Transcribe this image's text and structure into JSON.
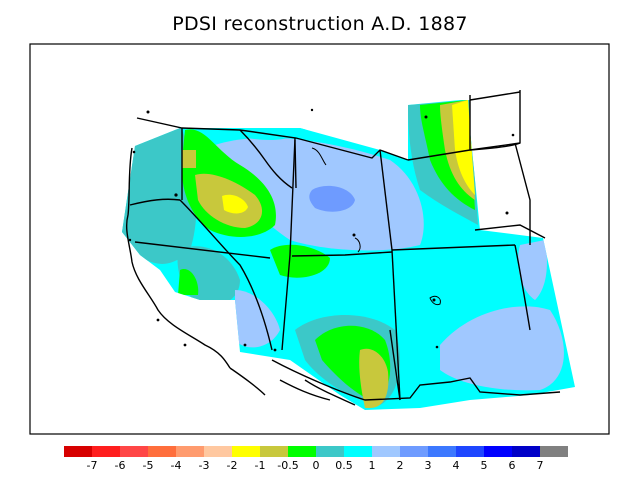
{
  "title": "PDSI reconstruction A.D. 1887",
  "colorbar": {
    "colors": [
      "#d70000",
      "#ff1e1e",
      "#ff4646",
      "#ff6e3c",
      "#ff9b6e",
      "#ffc8a0",
      "#ffff00",
      "#c8c83c",
      "#00ff00",
      "#3cc8c8",
      "#00ffff",
      "#a0c8ff",
      "#6e9bff",
      "#3c78ff",
      "#1e46ff",
      "#0000ff",
      "#0000c8",
      "#808080"
    ],
    "labels": [
      "-7",
      "-6",
      "-5",
      "-4",
      "-3",
      "-2",
      "-1",
      "-0.5",
      "0",
      "0.5",
      "1",
      "2",
      "3",
      "4",
      "5",
      "6",
      "7"
    ]
  },
  "icons": {
    "map": "western-us-state-boundaries"
  }
}
